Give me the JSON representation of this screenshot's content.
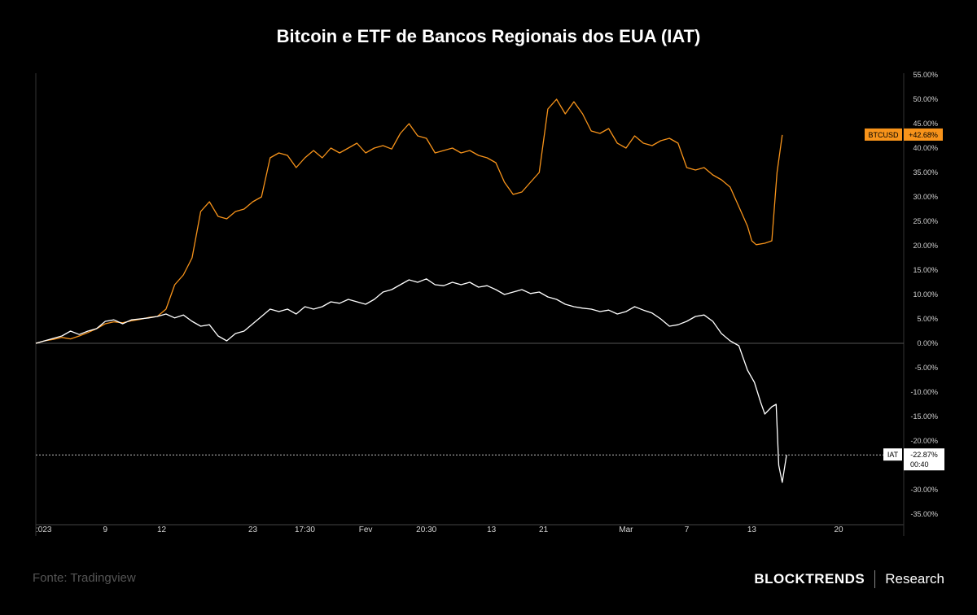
{
  "title": "Bitcoin e ETF de Bancos Regionais dos EUA (IAT)",
  "footer": {
    "source": "Fonte: Tradingview",
    "brand": "BLOCKTRENDS",
    "brand_sub": "Research"
  },
  "colors": {
    "btc": "#f7931a",
    "iat": "#ffffff",
    "background": "#000000"
  },
  "chart_data": {
    "type": "line",
    "ylabel_unit": "%",
    "ylim": [
      -37,
      55
    ],
    "y_ticks": [
      "55.00%",
      "50.00%",
      "45.00%",
      "40.00%",
      "35.00%",
      "30.00%",
      "25.00%",
      "20.00%",
      "15.00%",
      "10.00%",
      "5.00%",
      "0.00%",
      "-5.00%",
      "-10.00%",
      "-15.00%",
      "-20.00%",
      "-25.00%",
      "-30.00%",
      "-35.00%"
    ],
    "y_tick_values": [
      55,
      50,
      45,
      40,
      35,
      30,
      25,
      20,
      15,
      10,
      5,
      0,
      -5,
      -10,
      -15,
      -20,
      -25,
      -30,
      -35
    ],
    "x_ticks": [
      {
        "label": ":023",
        "pos": 0
      },
      {
        "label": "9",
        "pos": 8
      },
      {
        "label": "12",
        "pos": 14.5
      },
      {
        "label": "23",
        "pos": 25
      },
      {
        "label": "17:30",
        "pos": 31
      },
      {
        "label": "Fev",
        "pos": 38
      },
      {
        "label": "20:30",
        "pos": 45
      },
      {
        "label": "13",
        "pos": 52.5
      },
      {
        "label": "21",
        "pos": 58.5
      },
      {
        "label": "Mar",
        "pos": 68
      },
      {
        "label": "7",
        "pos": 75
      },
      {
        "label": "13",
        "pos": 82.5
      },
      {
        "label": "20",
        "pos": 92.5
      }
    ],
    "x_range": [
      0,
      100
    ],
    "series": [
      {
        "name": "BTCUSD",
        "last_label": "+42.68%",
        "points": [
          [
            0,
            0
          ],
          [
            1,
            0.5
          ],
          [
            2,
            0.8
          ],
          [
            3,
            1.2
          ],
          [
            4,
            0.9
          ],
          [
            5,
            1.5
          ],
          [
            6,
            2.2
          ],
          [
            7,
            3
          ],
          [
            8,
            4
          ],
          [
            9,
            4.4
          ],
          [
            10,
            4.2
          ],
          [
            11,
            4.6
          ],
          [
            12,
            4.9
          ],
          [
            13,
            5.3
          ],
          [
            14,
            5.5
          ],
          [
            15,
            7
          ],
          [
            16,
            12
          ],
          [
            17,
            14
          ],
          [
            18,
            17.5
          ],
          [
            19,
            27
          ],
          [
            20,
            29
          ],
          [
            21,
            26
          ],
          [
            22,
            25.5
          ],
          [
            23,
            27
          ],
          [
            24,
            27.5
          ],
          [
            25,
            29
          ],
          [
            26,
            30
          ],
          [
            27,
            38
          ],
          [
            28,
            39
          ],
          [
            29,
            38.5
          ],
          [
            30,
            36
          ],
          [
            31,
            38
          ],
          [
            32,
            39.5
          ],
          [
            33,
            38
          ],
          [
            34,
            40
          ],
          [
            35,
            39
          ],
          [
            36,
            40
          ],
          [
            37,
            41
          ],
          [
            38,
            39
          ],
          [
            39,
            40
          ],
          [
            40,
            40.5
          ],
          [
            41,
            39.8
          ],
          [
            42,
            43
          ],
          [
            43,
            45
          ],
          [
            44,
            42.5
          ],
          [
            45,
            42
          ],
          [
            46,
            39
          ],
          [
            47,
            39.5
          ],
          [
            48,
            40
          ],
          [
            49,
            39
          ],
          [
            50,
            39.5
          ],
          [
            51,
            38.5
          ],
          [
            52,
            38
          ],
          [
            53,
            37
          ],
          [
            54,
            33
          ],
          [
            55,
            30.5
          ],
          [
            56,
            31
          ],
          [
            57,
            33
          ],
          [
            58,
            35
          ],
          [
            59,
            48
          ],
          [
            60,
            50
          ],
          [
            61,
            47
          ],
          [
            62,
            49.5
          ],
          [
            63,
            47
          ],
          [
            64,
            43.5
          ],
          [
            65,
            43
          ],
          [
            66,
            44
          ],
          [
            67,
            41
          ],
          [
            68,
            40
          ],
          [
            69,
            42.5
          ],
          [
            70,
            41
          ],
          [
            71,
            40.5
          ],
          [
            72,
            41.5
          ],
          [
            73,
            42
          ],
          [
            74,
            41
          ],
          [
            75,
            36
          ],
          [
            76,
            35.5
          ],
          [
            77,
            36
          ],
          [
            78,
            34.5
          ],
          [
            79,
            33.5
          ],
          [
            80,
            32
          ],
          [
            81,
            28
          ],
          [
            82,
            24
          ],
          [
            82.5,
            21
          ],
          [
            83,
            20.2
          ],
          [
            84,
            20.5
          ],
          [
            84.8,
            21
          ],
          [
            85.4,
            35
          ],
          [
            86,
            42.68
          ]
        ]
      },
      {
        "name": "IAT",
        "last_label": "-22.87%",
        "time_label": "00:40",
        "points": [
          [
            0,
            0
          ],
          [
            1,
            0.5
          ],
          [
            2,
            1
          ],
          [
            3,
            1.5
          ],
          [
            4,
            2.5
          ],
          [
            5,
            1.8
          ],
          [
            6,
            2.5
          ],
          [
            7,
            3
          ],
          [
            8,
            4.5
          ],
          [
            9,
            4.8
          ],
          [
            10,
            4
          ],
          [
            11,
            4.8
          ],
          [
            12,
            5
          ],
          [
            13,
            5.2
          ],
          [
            14,
            5.5
          ],
          [
            15,
            6
          ],
          [
            16,
            5.2
          ],
          [
            17,
            5.8
          ],
          [
            18,
            4.5
          ],
          [
            19,
            3.5
          ],
          [
            20,
            3.8
          ],
          [
            21,
            1.5
          ],
          [
            22,
            0.5
          ],
          [
            23,
            2
          ],
          [
            24,
            2.5
          ],
          [
            25,
            4
          ],
          [
            26,
            5.5
          ],
          [
            27,
            7
          ],
          [
            28,
            6.5
          ],
          [
            29,
            7
          ],
          [
            30,
            6
          ],
          [
            31,
            7.5
          ],
          [
            32,
            7
          ],
          [
            33,
            7.5
          ],
          [
            34,
            8.5
          ],
          [
            35,
            8.2
          ],
          [
            36,
            9
          ],
          [
            37,
            8.5
          ],
          [
            38,
            8
          ],
          [
            39,
            9
          ],
          [
            40,
            10.5
          ],
          [
            41,
            11
          ],
          [
            42,
            12
          ],
          [
            43,
            13
          ],
          [
            44,
            12.5
          ],
          [
            45,
            13.2
          ],
          [
            46,
            12
          ],
          [
            47,
            11.8
          ],
          [
            48,
            12.5
          ],
          [
            49,
            12
          ],
          [
            50,
            12.5
          ],
          [
            51,
            11.5
          ],
          [
            52,
            11.8
          ],
          [
            53,
            11
          ],
          [
            54,
            10
          ],
          [
            55,
            10.5
          ],
          [
            56,
            11
          ],
          [
            57,
            10.2
          ],
          [
            58,
            10.5
          ],
          [
            59,
            9.5
          ],
          [
            60,
            9
          ],
          [
            61,
            8
          ],
          [
            62,
            7.5
          ],
          [
            63,
            7.2
          ],
          [
            64,
            7
          ],
          [
            65,
            6.5
          ],
          [
            66,
            6.8
          ],
          [
            67,
            6
          ],
          [
            68,
            6.5
          ],
          [
            69,
            7.5
          ],
          [
            70,
            6.8
          ],
          [
            71,
            6.2
          ],
          [
            72,
            5
          ],
          [
            73,
            3.5
          ],
          [
            74,
            3.8
          ],
          [
            75,
            4.5
          ],
          [
            76,
            5.5
          ],
          [
            77,
            5.8
          ],
          [
            78,
            4.5
          ],
          [
            79,
            2
          ],
          [
            80,
            0.5
          ],
          [
            81,
            -0.5
          ],
          [
            81.5,
            -3
          ],
          [
            82,
            -5.5
          ],
          [
            82.8,
            -8
          ],
          [
            83.5,
            -12
          ],
          [
            84,
            -14.5
          ],
          [
            84.8,
            -13
          ],
          [
            85.3,
            -12.5
          ],
          [
            85.6,
            -25
          ],
          [
            86,
            -28.5
          ],
          [
            86.5,
            -22.87
          ]
        ]
      }
    ],
    "baseline": 0
  }
}
